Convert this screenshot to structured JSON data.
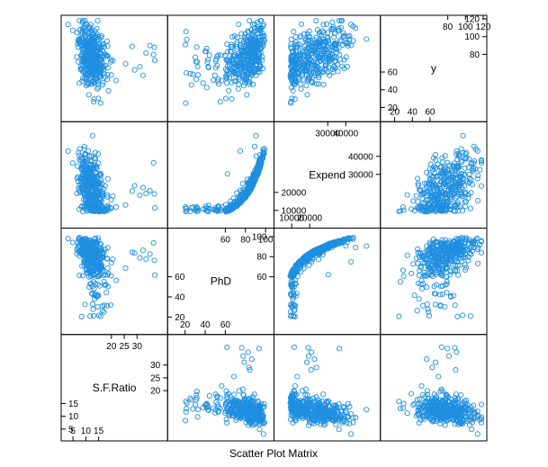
{
  "chart_data": {
    "type": "scatter",
    "kind": "scatter-plot-matrix",
    "xlabel": "Scatter Plot Matrix",
    "point_color": "#1f8fe0",
    "variables": [
      {
        "name": "S.F.Ratio",
        "range": [
          2.5,
          39.8
        ],
        "tick_values_low": [
          5,
          10,
          15
        ],
        "tick_values_high": [
          20,
          25,
          30
        ],
        "tick_labels_low": [
          "5",
          "10",
          "15"
        ],
        "tick_labels_high": [
          "20",
          "25",
          "30"
        ],
        "axis_ticks": [
          5,
          10,
          15,
          20,
          25,
          30
        ]
      },
      {
        "name": "PhD",
        "range": [
          8,
          103
        ],
        "tick_values_low": [
          20,
          40,
          60
        ],
        "tick_values_high": [
          60,
          80,
          100
        ],
        "tick_labels_low": [
          "20",
          "40",
          "60"
        ],
        "tick_labels_high": [
          "60",
          "80",
          "100"
        ],
        "axis_ticks": [
          20,
          40,
          60,
          80,
          100
        ]
      },
      {
        "name": "Expend",
        "range": [
          3186,
          56233
        ],
        "tick_values_low": [
          10000,
          20000
        ],
        "tick_values_high": [
          30000,
          40000
        ],
        "tick_labels_low": [
          "10000",
          "20000"
        ],
        "tick_labels_high": [
          "30000",
          "40000"
        ],
        "axis_ticks": [
          10000,
          20000,
          30000,
          40000
        ]
      },
      {
        "name": "y",
        "range": [
          10,
          118
        ],
        "tick_values_low": [
          20,
          40,
          60
        ],
        "tick_values_high": [
          80,
          100,
          120
        ],
        "tick_labels_low": [
          "20",
          "40",
          "60"
        ],
        "tick_labels_high": [
          "80",
          "100",
          "120"
        ],
        "axis_ticks": [
          20,
          40,
          60,
          80,
          100,
          120
        ]
      }
    ],
    "observations": 400,
    "random_seed": 20240611
  }
}
